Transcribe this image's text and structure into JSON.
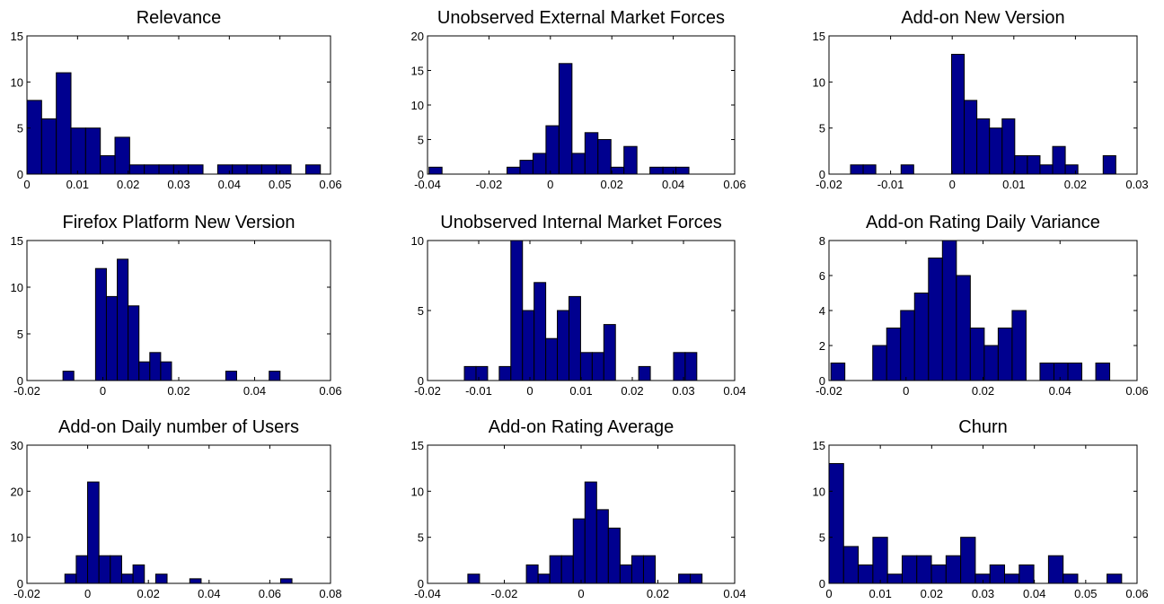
{
  "colors": {
    "bar_fill": "#00008F",
    "bar_edge": "#000000",
    "axis": "#000000",
    "background": "#ffffff"
  },
  "chart_data": [
    {
      "type": "bar",
      "title": "Relevance",
      "xlim": [
        0,
        0.06
      ],
      "ylim": [
        0,
        15
      ],
      "xticks": [
        0,
        0.01,
        0.02,
        0.03,
        0.04,
        0.05,
        0.06
      ],
      "xtick_labels": [
        "0",
        "0.01",
        "0.02",
        "0.03",
        "0.04",
        "0.05",
        "0.06"
      ],
      "yticks": [
        0,
        5,
        10,
        15
      ],
      "ytick_labels": [
        "0",
        "5",
        "10",
        "15"
      ],
      "bin_start": 0,
      "bin_width": 0.0029,
      "counts": [
        8,
        6,
        11,
        5,
        5,
        2,
        4,
        1,
        1,
        1,
        1,
        1,
        0,
        1,
        1,
        1,
        1,
        1,
        0,
        1
      ]
    },
    {
      "type": "bar",
      "title": "Unobserved External Market Forces",
      "xlim": [
        -0.04,
        0.06
      ],
      "ylim": [
        0,
        20
      ],
      "xticks": [
        -0.04,
        -0.02,
        0,
        0.02,
        0.04,
        0.06
      ],
      "xtick_labels": [
        "-0.04",
        "-0.02",
        "0",
        "0.02",
        "0.04",
        "0.06"
      ],
      "yticks": [
        0,
        5,
        10,
        15,
        20
      ],
      "ytick_labels": [
        "0",
        "5",
        "10",
        "15",
        "20"
      ],
      "bin_start": -0.0395,
      "bin_width": 0.00423,
      "counts": [
        1,
        0,
        0,
        0,
        0,
        0,
        1,
        2,
        3,
        7,
        16,
        3,
        6,
        5,
        1,
        4,
        0,
        1,
        1,
        1
      ]
    },
    {
      "type": "bar",
      "title": "Add-on New Version",
      "xlim": [
        -0.02,
        0.03
      ],
      "ylim": [
        0,
        15
      ],
      "xticks": [
        -0.02,
        -0.01,
        0,
        0.01,
        0.02,
        0.03
      ],
      "xtick_labels": [
        "-0.02",
        "-0.01",
        "0",
        "0.01",
        "0.02",
        "0.03"
      ],
      "yticks": [
        0,
        5,
        10,
        15
      ],
      "ytick_labels": [
        "0",
        "5",
        "10",
        "15"
      ],
      "bin_start": -0.0165,
      "bin_width": 0.00205,
      "counts": [
        1,
        1,
        0,
        0,
        1,
        0,
        0,
        0,
        13,
        8,
        6,
        5,
        6,
        2,
        2,
        1,
        3,
        1,
        0,
        0,
        2
      ]
    },
    {
      "type": "bar",
      "title": "Firefox Platform New Version",
      "xlim": [
        -0.02,
        0.06
      ],
      "ylim": [
        0,
        15
      ],
      "xticks": [
        -0.02,
        0,
        0.02,
        0.04,
        0.06
      ],
      "xtick_labels": [
        "-0.02",
        "0",
        "0.02",
        "0.04",
        "0.06"
      ],
      "yticks": [
        0,
        5,
        10,
        15
      ],
      "ytick_labels": [
        "0",
        "5",
        "10",
        "15"
      ],
      "bin_start": -0.0105,
      "bin_width": 0.00286,
      "counts": [
        1,
        0,
        0,
        12,
        9,
        13,
        8,
        2,
        3,
        2,
        0,
        0,
        0,
        0,
        0,
        1,
        0,
        0,
        0,
        1
      ]
    },
    {
      "type": "bar",
      "title": "Unobserved Internal Market Forces",
      "xlim": [
        -0.02,
        0.04
      ],
      "ylim": [
        0,
        10
      ],
      "xticks": [
        -0.02,
        -0.01,
        0,
        0.01,
        0.02,
        0.03,
        0.04
      ],
      "xtick_labels": [
        "-0.02",
        "-0.01",
        "0",
        "0.01",
        "0.02",
        "0.03",
        "0.04"
      ],
      "yticks": [
        0,
        5,
        10
      ],
      "ytick_labels": [
        "0",
        "5",
        "10"
      ],
      "bin_start": -0.0128,
      "bin_width": 0.00227,
      "counts": [
        1,
        1,
        0,
        1,
        10,
        5,
        7,
        3,
        5,
        6,
        2,
        2,
        4,
        0,
        0,
        1,
        0,
        0,
        2,
        2
      ]
    },
    {
      "type": "bar",
      "title": "Add-on Rating Daily Variance",
      "xlim": [
        -0.02,
        0.06
      ],
      "ylim": [
        0,
        8
      ],
      "xticks": [
        -0.02,
        0,
        0.02,
        0.04,
        0.06
      ],
      "xtick_labels": [
        "-0.02",
        "0",
        "0.02",
        "0.04",
        "0.06"
      ],
      "yticks": [
        0,
        2,
        4,
        6,
        8
      ],
      "ytick_labels": [
        "0",
        "2",
        "4",
        "6",
        "8"
      ],
      "bin_start": -0.0195,
      "bin_width": 0.00362,
      "counts": [
        1,
        0,
        0,
        2,
        3,
        4,
        5,
        7,
        8,
        6,
        3,
        2,
        3,
        4,
        0,
        1,
        1,
        1,
        0,
        1
      ]
    },
    {
      "type": "bar",
      "title": "Add-on Daily number of Users",
      "xlim": [
        -0.02,
        0.08
      ],
      "ylim": [
        0,
        30
      ],
      "xticks": [
        -0.02,
        0,
        0.02,
        0.04,
        0.06,
        0.08
      ],
      "xtick_labels": [
        "-0.02",
        "0",
        "0.02",
        "0.04",
        "0.06",
        "0.08"
      ],
      "yticks": [
        0,
        10,
        20,
        30
      ],
      "ytick_labels": [
        "0",
        "10",
        "20",
        "30"
      ],
      "bin_start": -0.0075,
      "bin_width": 0.00374,
      "counts": [
        2,
        6,
        22,
        6,
        6,
        2,
        4,
        0,
        2,
        0,
        0,
        1,
        0,
        0,
        0,
        0,
        0,
        0,
        0,
        1
      ]
    },
    {
      "type": "bar",
      "title": "Add-on Rating Average",
      "xlim": [
        -0.04,
        0.04
      ],
      "ylim": [
        0,
        15
      ],
      "xticks": [
        -0.04,
        -0.02,
        0,
        0.02,
        0.04
      ],
      "xtick_labels": [
        "-0.04",
        "-0.02",
        "0",
        "0.02",
        "0.04"
      ],
      "yticks": [
        0,
        5,
        10,
        15
      ],
      "ytick_labels": [
        "0",
        "5",
        "10",
        "15"
      ],
      "bin_start": -0.0295,
      "bin_width": 0.00305,
      "counts": [
        1,
        0,
        0,
        0,
        0,
        2,
        1,
        3,
        3,
        7,
        11,
        8,
        6,
        2,
        3,
        3,
        0,
        0,
        1,
        1
      ]
    },
    {
      "type": "bar",
      "title": "Churn",
      "xlim": [
        0,
        0.06
      ],
      "ylim": [
        0,
        15
      ],
      "xticks": [
        0,
        0.01,
        0.02,
        0.03,
        0.04,
        0.05,
        0.06
      ],
      "xtick_labels": [
        "0",
        "0.01",
        "0.02",
        "0.03",
        "0.04",
        "0.05",
        "0.06"
      ],
      "yticks": [
        0,
        5,
        10,
        15
      ],
      "ytick_labels": [
        "0",
        "5",
        "10",
        "15"
      ],
      "bin_start": 0,
      "bin_width": 0.00285,
      "counts": [
        13,
        4,
        2,
        5,
        1,
        3,
        3,
        2,
        3,
        5,
        1,
        2,
        1,
        2,
        0,
        3,
        1,
        0,
        0,
        1
      ]
    }
  ]
}
